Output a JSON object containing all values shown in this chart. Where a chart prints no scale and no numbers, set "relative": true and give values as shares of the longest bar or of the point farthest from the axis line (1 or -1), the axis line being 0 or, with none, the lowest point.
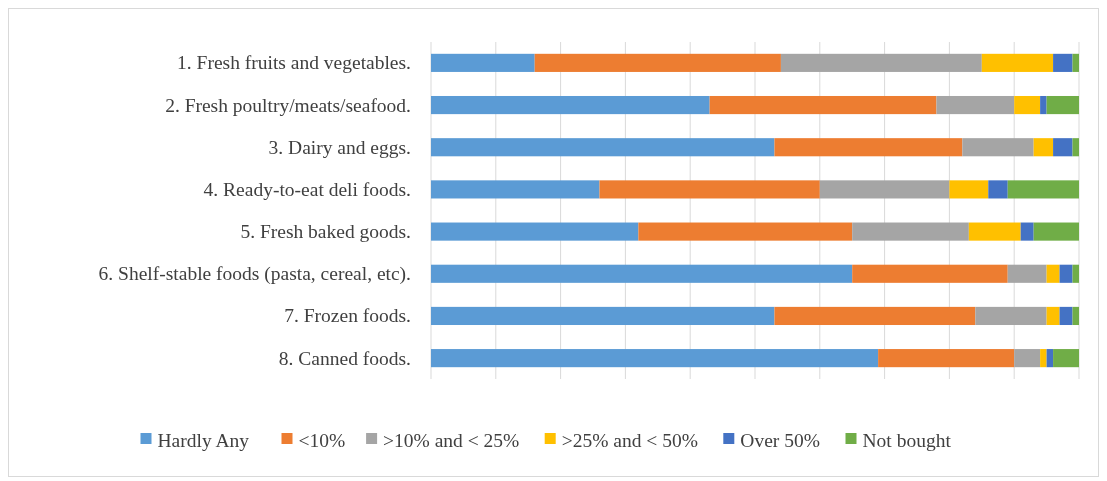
{
  "chart_data": {
    "type": "bar",
    "orientation": "horizontal",
    "stacked": true,
    "relative": true,
    "grid": "x",
    "legend": "bottom",
    "categories": [
      "1. Fresh fruits and vegetables.",
      "2. Fresh poultry/meats/seafood.",
      "3. Dairy and eggs.",
      "4. Ready-to-eat deli foods.",
      "5. Fresh baked goods.",
      "6. Shelf-stable foods (pasta, cereal, etc).",
      "7. Frozen foods.",
      "8. Canned foods."
    ],
    "series": [
      {
        "name": "Hardly Any",
        "color": "#5b9bd5",
        "values": [
          0.16,
          0.43,
          0.53,
          0.26,
          0.32,
          0.65,
          0.53,
          0.69
        ]
      },
      {
        "name": "<10%",
        "color": "#ed7d31",
        "values": [
          0.38,
          0.35,
          0.29,
          0.34,
          0.33,
          0.24,
          0.31,
          0.21
        ]
      },
      {
        "name": ">10% and < 25%",
        "color": "#a5a5a5",
        "values": [
          0.31,
          0.12,
          0.11,
          0.2,
          0.18,
          0.06,
          0.11,
          0.04
        ]
      },
      {
        "name": ">25% and < 50%",
        "color": "#ffc000",
        "values": [
          0.11,
          0.04,
          0.03,
          0.06,
          0.08,
          0.02,
          0.02,
          0.01
        ]
      },
      {
        "name": "Over 50%",
        "color": "#4472c4",
        "values": [
          0.03,
          0.01,
          0.03,
          0.03,
          0.02,
          0.02,
          0.02,
          0.01
        ]
      },
      {
        "name": "Not bought",
        "color": "#70ad47",
        "values": [
          0.01,
          0.05,
          0.01,
          0.11,
          0.07,
          0.01,
          0.01,
          0.04
        ]
      }
    ]
  }
}
